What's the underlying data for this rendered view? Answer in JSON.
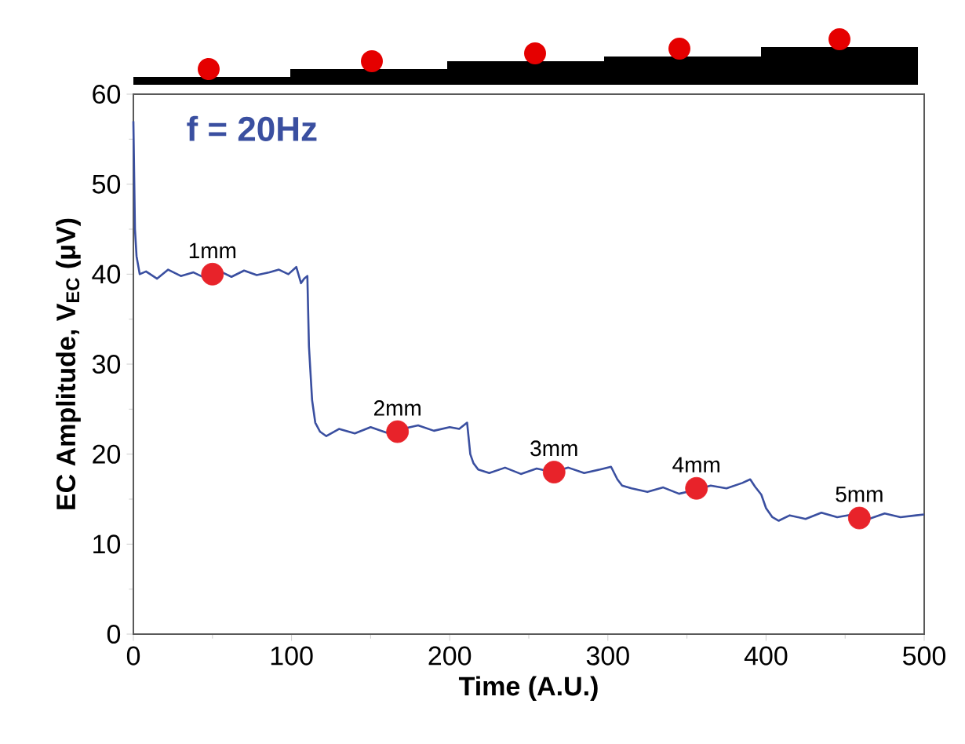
{
  "chart_data": {
    "type": "line",
    "xlabel": "Time (A.U.)",
    "ylabel": "EC Amplitude, V$_{EC}$ (μV)",
    "xlim": [
      0,
      500
    ],
    "ylim": [
      0,
      60
    ],
    "xticks": [
      0,
      100,
      200,
      300,
      400,
      500
    ],
    "yticks": [
      0,
      10,
      20,
      30,
      40,
      50,
      60
    ],
    "grid": false,
    "series": [
      {
        "color": "#3a4fa0",
        "marker": "none",
        "x": [
          0,
          1,
          2,
          4,
          8,
          15,
          22,
          30,
          38,
          45,
          55,
          62,
          70,
          78,
          86,
          92,
          98,
          103,
          106,
          108,
          110,
          111,
          113,
          115,
          118,
          122,
          130,
          140,
          150,
          160,
          170,
          180,
          190,
          200,
          206,
          211,
          213,
          215,
          218,
          225,
          235,
          245,
          255,
          265,
          275,
          285,
          295,
          302,
          306,
          309,
          315,
          325,
          335,
          345,
          355,
          365,
          375,
          385,
          390,
          393,
          397,
          400,
          404,
          408,
          415,
          425,
          435,
          445,
          455,
          465,
          475,
          485,
          495,
          500
        ],
        "values": [
          57,
          45,
          42,
          40,
          40.3,
          39.5,
          40.5,
          39.8,
          40.2,
          39.6,
          40.3,
          39.7,
          40.4,
          39.9,
          40.2,
          40.5,
          40.0,
          40.8,
          39.0,
          39.5,
          39.8,
          32,
          26,
          23.5,
          22.5,
          22.0,
          22.8,
          22.3,
          23.0,
          22.4,
          22.8,
          23.2,
          22.6,
          23.0,
          22.8,
          23.5,
          20,
          19.0,
          18.3,
          17.9,
          18.5,
          17.8,
          18.4,
          18.0,
          18.5,
          17.9,
          18.3,
          18.6,
          17.2,
          16.5,
          16.2,
          15.8,
          16.3,
          15.6,
          16.0,
          16.5,
          16.2,
          16.8,
          17.2,
          16.4,
          15.5,
          14.0,
          13.0,
          12.6,
          13.2,
          12.8,
          13.5,
          13.0,
          13.3,
          12.8,
          13.4,
          13.0,
          13.2,
          13.3
        ]
      },
      {
        "type": "scatter",
        "color": "#e8232a",
        "marker": "circle",
        "x": [
          50,
          167,
          266,
          356,
          459
        ],
        "values": [
          40,
          22.5,
          18,
          16.2,
          12.9
        ]
      }
    ],
    "annotations": [
      "f = 20Hz",
      {
        "text": "1mm",
        "x": 50,
        "y": 40
      },
      {
        "text": "2mm",
        "x": 167,
        "y": 22.5
      },
      {
        "text": "3mm",
        "x": 266,
        "y": 18
      },
      {
        "text": "4mm",
        "x": 356,
        "y": 16.2
      },
      {
        "text": "5mm",
        "x": 459,
        "y": 12.9
      }
    ]
  }
}
